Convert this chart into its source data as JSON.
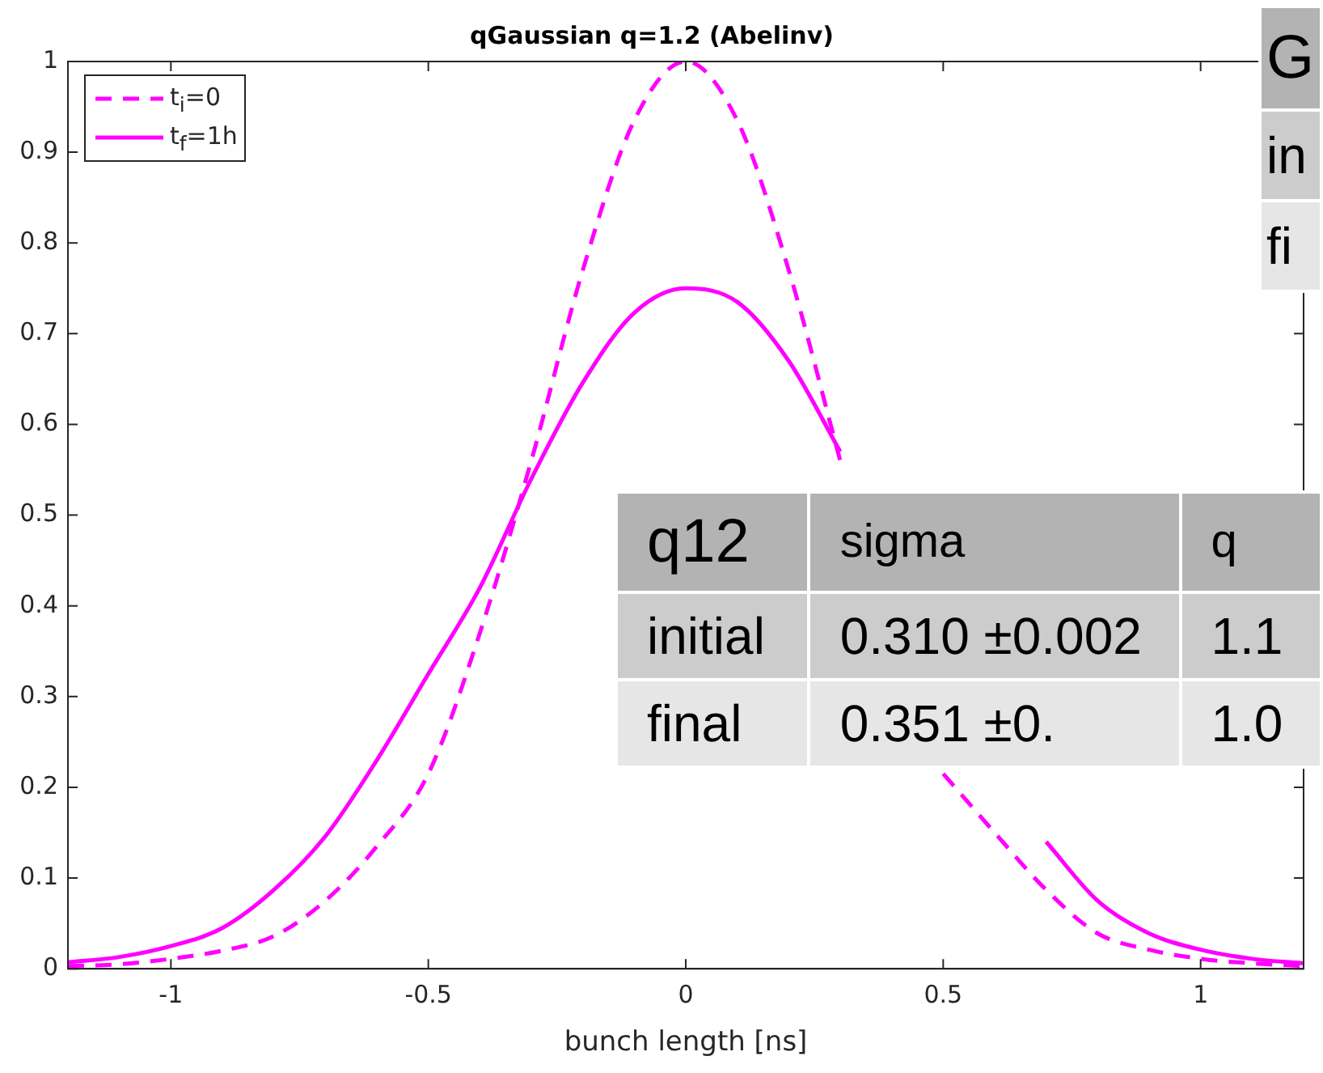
{
  "chart_data": {
    "type": "line",
    "title": "qGaussian q=1.2 (Abelinv)",
    "xlabel": "bunch length [ns]",
    "xlim": [
      -1.2,
      1.2
    ],
    "xticks": [
      -1,
      -0.5,
      0,
      0.5,
      1
    ],
    "ylim": [
      0,
      1
    ],
    "yticks": [
      0,
      0.1,
      0.2,
      0.3,
      0.4,
      0.5,
      0.6,
      0.7,
      0.8,
      0.9,
      1
    ],
    "x": [
      -1.2,
      -1.1,
      -1,
      -0.9,
      -0.8,
      -0.7,
      -0.6,
      -0.5,
      -0.4,
      -0.3,
      -0.2,
      -0.1,
      0,
      0.1,
      0.2,
      0.3,
      0.4,
      0.5,
      0.6,
      0.7,
      0.8,
      0.9,
      1,
      1.1,
      1.2
    ],
    "series": [
      {
        "name": "t$_{i}$=0",
        "color": "#ff00ff",
        "line_style": "dashed",
        "values": [
          0.003,
          0.005,
          0.011,
          0.02,
          0.036,
          0.075,
          0.135,
          0.215,
          0.37,
          0.56,
          0.77,
          0.935,
          1,
          0.935,
          0.77,
          0.56,
          null,
          0.215,
          0.15,
          0.087,
          0.039,
          0.021,
          0.011,
          0.006,
          0.003
        ]
      },
      {
        "name": "t$_{f}$=1h",
        "color": "#ff00ff",
        "line_style": "solid",
        "values": [
          0.007,
          0.013,
          0.025,
          0.045,
          0.087,
          0.146,
          0.23,
          0.325,
          0.42,
          0.54,
          0.646,
          0.723,
          0.75,
          0.735,
          0.67,
          0.57,
          null,
          null,
          null,
          0.14,
          0.075,
          0.039,
          0.021,
          0.011,
          0.006
        ]
      }
    ],
    "legend": "top left",
    "annotations": [
      "q12",
      "sigma",
      "q",
      "initial",
      "0.310 ±0.002",
      "1.1",
      "final",
      "0.351 ±0.",
      "1.0",
      "G",
      "in",
      "fi"
    ]
  }
}
